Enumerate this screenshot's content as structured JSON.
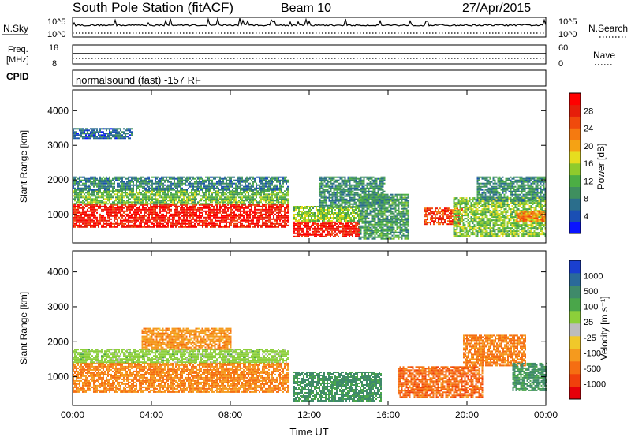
{
  "chart_data": [
    {
      "type": "heatmap",
      "name": "power",
      "title": "South Pole Station (fitACF)",
      "beam_label": "Beam 10",
      "date": "27/Apr/2015",
      "program_label": "normalsound (fast) -157 RF",
      "ylabel": "Slant Range [km]",
      "xlabel": "Time UT",
      "x_ticks": [
        "00:00",
        "04:00",
        "08:00",
        "12:00",
        "16:00",
        "20:00",
        "00:00"
      ],
      "x_range_hours": [
        0,
        24
      ],
      "y_ticks": [
        1000,
        2000,
        3000,
        4000
      ],
      "ylim": [
        180,
        4600
      ],
      "colorbar": {
        "label": "Power [dB]",
        "ticks": [
          "4",
          "8",
          "12",
          "16",
          "20",
          "24",
          "28"
        ],
        "range": [
          0,
          32
        ],
        "colors": [
          "#0a14ff",
          "#1a4fb4",
          "#2b6e8c",
          "#3f8f5f",
          "#4cae44",
          "#8fcb2c",
          "#e6dd1f",
          "#f5a214",
          "#f57a10",
          "#f04a0c",
          "#e61e0a",
          "#ff0000"
        ]
      },
      "bands": [
        {
          "t0": 0.0,
          "t1": 10.9,
          "r0": 650,
          "r1": 1300,
          "value": 29
        },
        {
          "t0": 0.0,
          "t1": 10.9,
          "r0": 1300,
          "r1": 1700,
          "value": 13
        },
        {
          "t0": 0.0,
          "t1": 10.9,
          "r0": 1700,
          "r1": 2100,
          "value": 8
        },
        {
          "t0": 0.0,
          "t1": 3.0,
          "r0": 3200,
          "r1": 3500,
          "value": 6
        },
        {
          "t0": 11.2,
          "t1": 14.5,
          "r0": 350,
          "r1": 800,
          "value": 29
        },
        {
          "t0": 11.2,
          "t1": 14.5,
          "r0": 800,
          "r1": 1250,
          "value": 14
        },
        {
          "t0": 12.5,
          "t1": 15.8,
          "r0": 1200,
          "r1": 2100,
          "value": 9
        },
        {
          "t0": 14.5,
          "t1": 17.0,
          "r0": 300,
          "r1": 1600,
          "value": 10
        },
        {
          "t0": 17.8,
          "t1": 19.8,
          "r0": 700,
          "r1": 1200,
          "value": 26
        },
        {
          "t0": 19.3,
          "t1": 24.0,
          "r0": 400,
          "r1": 1500,
          "value": 14
        },
        {
          "t0": 20.5,
          "t1": 24.0,
          "r0": 1400,
          "r1": 2100,
          "value": 9
        },
        {
          "t0": 22.5,
          "t1": 24.0,
          "r0": 800,
          "r1": 1100,
          "value": 22
        }
      ]
    },
    {
      "type": "heatmap",
      "name": "velocity",
      "ylabel": "Slant Range [km]",
      "xlabel": "Time UT",
      "x_ticks": [
        "00:00",
        "04:00",
        "08:00",
        "12:00",
        "16:00",
        "20:00",
        "00:00"
      ],
      "y_ticks": [
        1000,
        2000,
        3000,
        4000
      ],
      "ylim": [
        180,
        4600
      ],
      "colorbar": {
        "label": "Velocity [m s⁻¹]",
        "ticks": [
          "-1000",
          "-500",
          "-100",
          "-25",
          "25",
          "100",
          "500",
          "1000"
        ],
        "colors": [
          "#e6000a",
          "#f0400c",
          "#f56e12",
          "#f59a1e",
          "#f0c82a",
          "#bcbcbc",
          "#8ccf3a",
          "#4aa64a",
          "#3f8a6a",
          "#2a6a9a",
          "#1a3fd0"
        ]
      },
      "bands": [
        {
          "t0": 0.0,
          "t1": 10.9,
          "r0": 550,
          "r1": 1400,
          "value": -250
        },
        {
          "t0": 0.0,
          "t1": 10.9,
          "r0": 1400,
          "r1": 1800,
          "value": 60
        },
        {
          "t0": 3.5,
          "t1": 8.0,
          "r0": 1800,
          "r1": 2400,
          "value": -200
        },
        {
          "t0": 11.2,
          "t1": 15.6,
          "r0": 300,
          "r1": 1150,
          "value": 300
        },
        {
          "t0": 16.5,
          "t1": 20.8,
          "r0": 400,
          "r1": 1300,
          "value": -400
        },
        {
          "t0": 19.8,
          "t1": 23.0,
          "r0": 1300,
          "r1": 2200,
          "value": -300
        },
        {
          "t0": 22.3,
          "t1": 24.0,
          "r0": 600,
          "r1": 1400,
          "value": 300
        }
      ]
    }
  ],
  "top_panels": {
    "nsky_label": "N.Sky",
    "nsky_ticks": [
      "10^5",
      "10^0"
    ],
    "nsearch_label": "N.Search",
    "nsearch_ticks": [
      "10^5",
      "10^0"
    ],
    "freq_label_1": "Freq.",
    "freq_label_2": "[MHz]",
    "freq_ticks": [
      "18",
      "8"
    ],
    "nave_label": "Nave",
    "nave_ticks": [
      "60",
      "0"
    ],
    "cpid_label": "CPID"
  }
}
